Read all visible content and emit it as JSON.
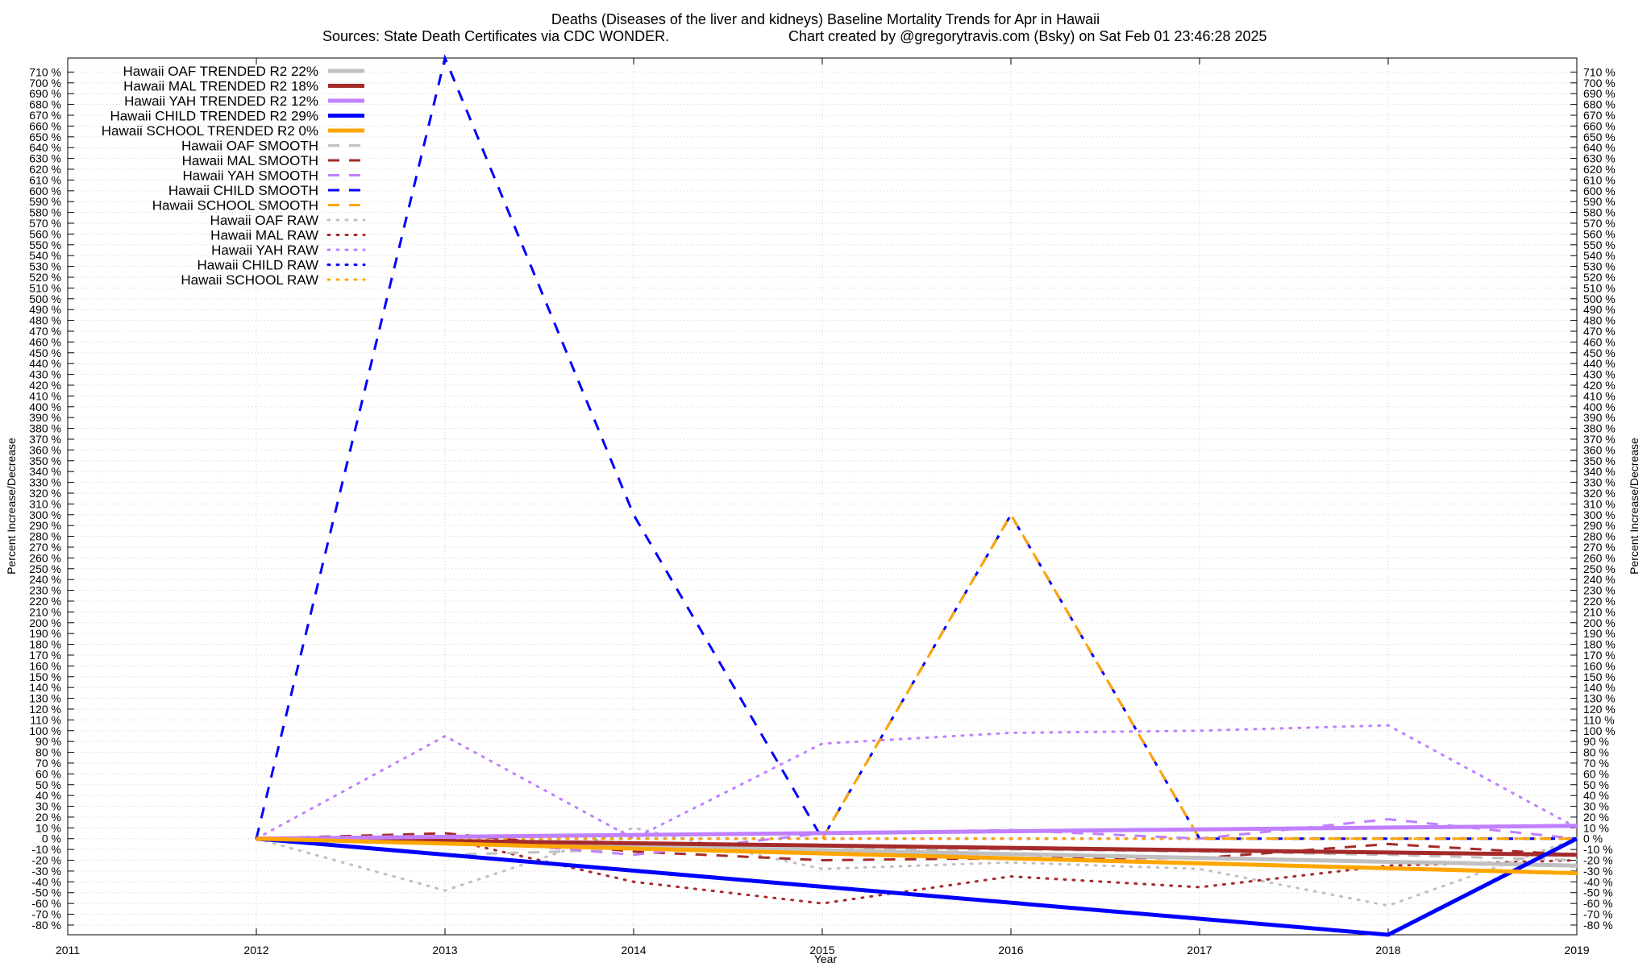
{
  "chart_data": {
    "type": "line",
    "title": "Deaths (Diseases of the liver and kidneys)  Baseline Mortality Trends for Apr in Hawaii",
    "subtitle_left": "Sources: State Death Certificates via CDC WONDER.",
    "subtitle_right": "Chart created by @gregorytravis.com (Bsky) on Sat Feb 01 23:46:28 2025",
    "xlabel": "Year",
    "ylabel_left": "Percent Increase/Decrease",
    "ylabel_right": "Percent Increase/Decrease",
    "xlim": [
      2011,
      2019
    ],
    "ylim": [
      -89,
      723
    ],
    "x_ticks": [
      2011,
      2012,
      2013,
      2014,
      2015,
      2016,
      2017,
      2018,
      2019
    ],
    "y_ticks": [
      -80,
      -70,
      -60,
      -50,
      -40,
      -30,
      -20,
      -10,
      0,
      10,
      20,
      30,
      40,
      50,
      60,
      70,
      80,
      90,
      100,
      110,
      120,
      130,
      140,
      150,
      160,
      170,
      180,
      190,
      200,
      210,
      220,
      230,
      240,
      250,
      260,
      270,
      280,
      290,
      300,
      310,
      320,
      330,
      340,
      350,
      360,
      370,
      380,
      390,
      400,
      410,
      420,
      430,
      440,
      450,
      460,
      470,
      480,
      490,
      500,
      510,
      520,
      530,
      540,
      550,
      560,
      570,
      580,
      590,
      600,
      610,
      620,
      630,
      640,
      650,
      660,
      670,
      680,
      690,
      700,
      710
    ],
    "y_tick_suffix": " %",
    "grid": true,
    "legend_position": "top-left",
    "series": [
      {
        "name": "Hawaii OAF TRENDED R2  22%",
        "color": "#c0c0c0",
        "style": "trend",
        "x": [
          2012,
          2019
        ],
        "y": [
          0,
          -25
        ]
      },
      {
        "name": "Hawaii MAL TRENDED R2  18%",
        "color": "#a52a2a",
        "style": "trend",
        "x": [
          2012,
          2019
        ],
        "y": [
          0,
          -15
        ]
      },
      {
        "name": "Hawaii YAH TRENDED R2  12%",
        "color": "#c080ff",
        "style": "trend",
        "x": [
          2012,
          2019
        ],
        "y": [
          0,
          12
        ]
      },
      {
        "name": "Hawaii CHILD TRENDED R2  29%",
        "color": "#0000ff",
        "style": "trend",
        "x": [
          2012,
          2018,
          2019
        ],
        "y": [
          0,
          -89,
          0
        ]
      },
      {
        "name": "Hawaii SCHOOL TRENDED R2   0%",
        "color": "#ffa500",
        "style": "trend",
        "x": [
          2012,
          2019
        ],
        "y": [
          0,
          -32
        ]
      },
      {
        "name": "Hawaii OAF SMOOTH",
        "color": "#c0c0c0",
        "style": "smooth",
        "x": [
          2012,
          2013,
          2014,
          2015,
          2016,
          2017,
          2018,
          2019
        ],
        "y": [
          0,
          -15,
          -10,
          -10,
          -10,
          -12,
          -15,
          -20
        ]
      },
      {
        "name": "Hawaii MAL SMOOTH",
        "color": "#a52a2a",
        "style": "smooth",
        "x": [
          2012,
          2013,
          2014,
          2015,
          2016,
          2017,
          2018,
          2019
        ],
        "y": [
          0,
          5,
          -12,
          -20,
          -18,
          -18,
          -5,
          -15
        ]
      },
      {
        "name": "Hawaii YAH SMOOTH",
        "color": "#c080ff",
        "style": "smooth",
        "x": [
          2012,
          2013,
          2014,
          2015,
          2016,
          2017,
          2018,
          2019
        ],
        "y": [
          0,
          0,
          -15,
          5,
          8,
          0,
          18,
          0
        ]
      },
      {
        "name": "Hawaii CHILD SMOOTH",
        "color": "#0000ff",
        "style": "smooth",
        "x": [
          2012,
          2013,
          2014,
          2015,
          2016,
          2017,
          2018,
          2019
        ],
        "y": [
          0,
          723,
          300,
          0,
          300,
          0,
          0,
          0
        ]
      },
      {
        "name": "Hawaii SCHOOL SMOOTH",
        "color": "#ffa500",
        "style": "smooth",
        "x": [
          2015,
          2016,
          2017,
          2018,
          2019
        ],
        "y": [
          0,
          300,
          0,
          0,
          0
        ]
      },
      {
        "name": "Hawaii OAF RAW",
        "color": "#c0c0c0",
        "style": "raw",
        "x": [
          2012,
          2013,
          2014,
          2015,
          2016,
          2017,
          2018,
          2019
        ],
        "y": [
          0,
          -48,
          10,
          -28,
          -22,
          -28,
          -62,
          0
        ]
      },
      {
        "name": "Hawaii MAL RAW",
        "color": "#a52a2a",
        "style": "raw",
        "x": [
          2012,
          2013,
          2014,
          2015,
          2016,
          2017,
          2018,
          2019
        ],
        "y": [
          0,
          0,
          -40,
          -60,
          -35,
          -45,
          -25,
          -20
        ]
      },
      {
        "name": "Hawaii YAH RAW",
        "color": "#c080ff",
        "style": "raw",
        "x": [
          2012,
          2013,
          2014,
          2015,
          2016,
          2017,
          2018,
          2019
        ],
        "y": [
          0,
          95,
          0,
          88,
          98,
          100,
          105,
          10
        ]
      },
      {
        "name": "Hawaii CHILD RAW",
        "color": "#0000ff",
        "style": "raw",
        "x": [
          2012,
          2013,
          2014,
          2015,
          2016,
          2017,
          2018,
          2019
        ],
        "y": [
          0,
          0,
          0,
          0,
          0,
          0,
          0,
          0
        ]
      },
      {
        "name": "Hawaii SCHOOL RAW",
        "color": "#ffa500",
        "style": "raw",
        "x": [
          2012,
          2013,
          2014,
          2015,
          2016,
          2017,
          2018,
          2019
        ],
        "y": [
          0,
          0,
          0,
          0,
          0,
          0,
          0,
          0
        ]
      }
    ]
  }
}
